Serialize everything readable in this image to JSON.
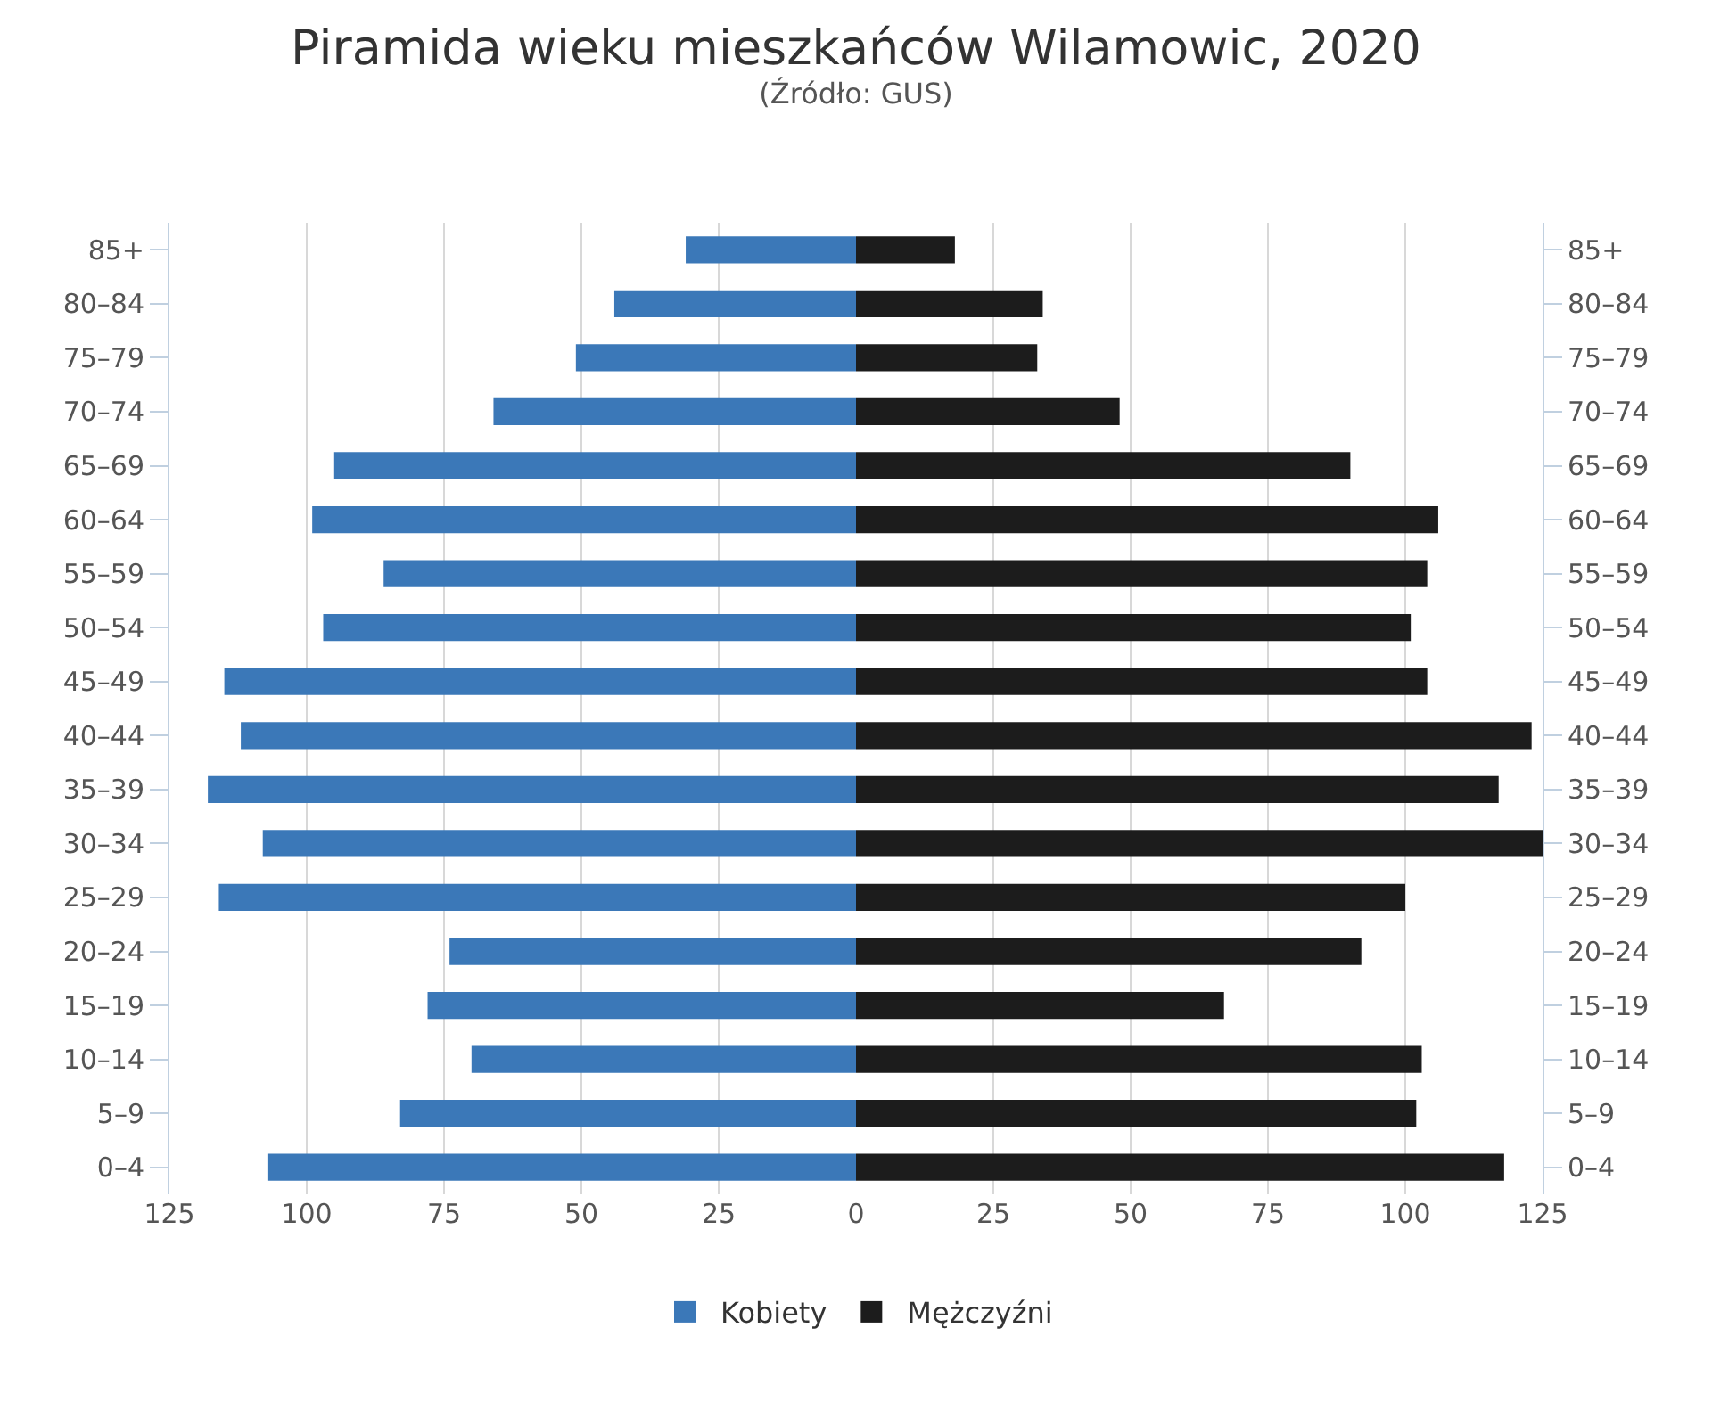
{
  "chart_data": [
    {
      "type": "bar",
      "orientation": "horizontal",
      "title": "Piramida wieku mieszkańców Wilamowic, 2020",
      "subtitle": "(Źródło: GUS)",
      "categories": [
        "85+",
        "80–84",
        "75–79",
        "70–74",
        "65–69",
        "60–64",
        "55–59",
        "50–54",
        "45–49",
        "40–44",
        "35–39",
        "30–34",
        "25–29",
        "20–24",
        "15–19",
        "10–14",
        "5–9",
        "0–4"
      ],
      "series": [
        {
          "name": "Kobiety",
          "color": "#3b78b8",
          "values": [
            31,
            44,
            51,
            66,
            95,
            99,
            86,
            97,
            115,
            112,
            118,
            108,
            116,
            74,
            78,
            70,
            83,
            107
          ]
        }
      ],
      "xlim": [
        125,
        0
      ],
      "xticks": [
        125,
        100,
        75,
        50,
        25,
        0
      ],
      "grid": "x",
      "legend": "bottom"
    },
    {
      "type": "bar",
      "orientation": "horizontal",
      "categories": [
        "85+",
        "80–84",
        "75–79",
        "70–74",
        "65–69",
        "60–64",
        "55–59",
        "50–54",
        "45–49",
        "40–44",
        "35–39",
        "30–34",
        "25–29",
        "20–24",
        "15–19",
        "10–14",
        "5–9",
        "0–4"
      ],
      "series": [
        {
          "name": "Mężczyźni",
          "color": "#1c1c1c",
          "values": [
            18,
            34,
            33,
            48,
            90,
            106,
            104,
            101,
            104,
            123,
            117,
            125,
            100,
            92,
            67,
            103,
            102,
            118
          ]
        }
      ],
      "xlim": [
        0,
        125
      ],
      "xticks": [
        25,
        50,
        75,
        100,
        125
      ],
      "grid": "x",
      "legend": "bottom"
    }
  ]
}
